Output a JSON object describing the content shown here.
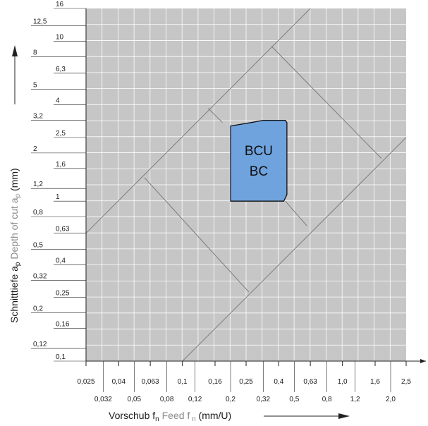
{
  "chart_data": {
    "type": "area",
    "title": "",
    "x_scale": "log",
    "y_scale": "log",
    "xlim": [
      0.025,
      2.5
    ],
    "ylim": [
      0.1,
      16
    ],
    "grid": true,
    "x_ticks_row1": [
      "0,025",
      "0,04",
      "0,063",
      "0,1",
      "0,16",
      "0,25",
      "0,4",
      "0,63",
      "1,0",
      "1,6",
      "2,5"
    ],
    "x_ticks_row2": [
      "0,032",
      "0,05",
      "0,08",
      "0,12",
      "0,2",
      "0,32",
      "0,5",
      "0,8",
      "1,2",
      "2,0"
    ],
    "x_tick_values_row1": [
      0.025,
      0.04,
      0.063,
      0.1,
      0.16,
      0.25,
      0.4,
      0.63,
      1.0,
      1.6,
      2.5
    ],
    "x_tick_values_row2": [
      0.032,
      0.05,
      0.08,
      0.12,
      0.2,
      0.32,
      0.5,
      0.8,
      1.2,
      2.0
    ],
    "y_ticks_left": [
      "12,5",
      "8",
      "5",
      "3,2",
      "2",
      "1,2",
      "0,8",
      "0,5",
      "0,32",
      "0,2",
      "0,12"
    ],
    "y_tick_values_left": [
      12.5,
      8,
      5,
      3.2,
      2,
      1.2,
      0.8,
      0.5,
      0.32,
      0.2,
      0.12
    ],
    "y_ticks_right": [
      "16",
      "10",
      "6,3",
      "4",
      "2,5",
      "1,6",
      "1",
      "0,63",
      "0,4",
      "0,25",
      "0,16",
      "0,1"
    ],
    "y_tick_values_right": [
      16,
      10,
      6.3,
      4,
      2.5,
      1.6,
      1,
      0.63,
      0.4,
      0.25,
      0.16,
      0.1
    ],
    "xlabel": {
      "part1": "Vorschub f",
      "sub1": "n",
      "part2": " Feed f",
      "sub2": " n",
      "part3": "  (mm/U)"
    },
    "ylabel": {
      "part1": "Schnitttiefe a",
      "sub1": "p",
      "part2": " Depth of cut a",
      "sub2": "p",
      "part3": " (mm)"
    },
    "region": {
      "labels": [
        "BCU",
        "BC"
      ],
      "color": "#6fa3de",
      "outline": [
        [
          0.2,
          2.95
        ],
        [
          0.27,
          3.1
        ],
        [
          0.32,
          3.2
        ],
        [
          0.44,
          3.2
        ],
        [
          0.45,
          3.1
        ],
        [
          0.45,
          1.1
        ],
        [
          0.43,
          1.0
        ],
        [
          0.2,
          1.0
        ]
      ]
    },
    "boundary_lines": [
      {
        "points": [
          [
            0.025,
            0.63
          ],
          [
            0.63,
            16
          ]
        ]
      },
      {
        "points": [
          [
            0.1,
            0.1
          ],
          [
            2.5,
            2.5
          ]
        ]
      },
      {
        "points": [
          [
            0.058,
            1.4
          ],
          [
            0.26,
            0.27
          ]
        ]
      },
      {
        "points": [
          [
            0.145,
            3.8
          ],
          [
            0.178,
            3.1
          ]
        ]
      },
      {
        "points": [
          [
            0.44,
            1.0
          ],
          [
            0.6,
            0.7
          ]
        ]
      },
      {
        "points": [
          [
            0.36,
            9.3
          ],
          [
            1.75,
            1.85
          ]
        ]
      }
    ],
    "colors": {
      "plot_background": "#c6c6c6",
      "grid": "#ffffff",
      "lines": "#7c7c7c",
      "axis": "#222222"
    }
  }
}
